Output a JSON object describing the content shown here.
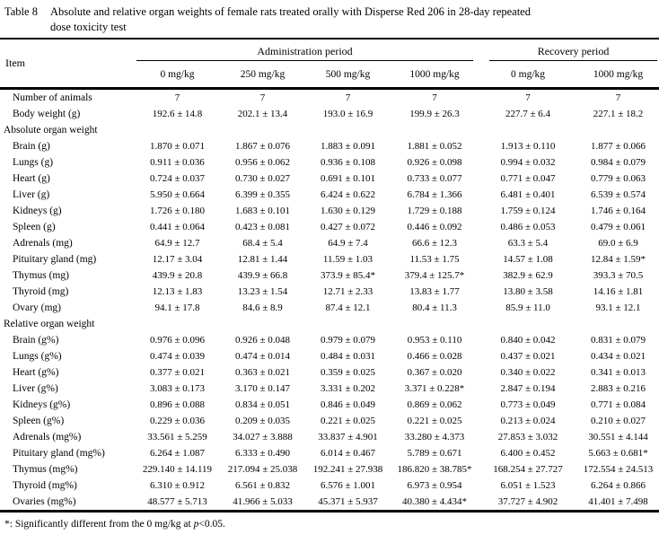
{
  "title": {
    "label": "Table 8",
    "line1": "Absolute and relative organ weights of female rats treated orally with Disperse Red 206 in 28-day repeated",
    "line2": "dose toxicity test"
  },
  "header": {
    "item": "Item",
    "groups": [
      {
        "label": "Administration period",
        "columns": 4
      },
      {
        "label": "Recovery period",
        "columns": 2
      }
    ],
    "doses": [
      "0 mg/kg",
      "250 mg/kg",
      "500 mg/kg",
      "1000 mg/kg",
      "0 mg/kg",
      "1000 mg/kg"
    ]
  },
  "rows": [
    {
      "label": "Number of animals",
      "section": false,
      "values": [
        "7",
        "7",
        "7",
        "7",
        "7",
        "7"
      ]
    },
    {
      "label": "Body weight (g)",
      "section": false,
      "values": [
        "192.6 ± 14.8",
        "202.1 ± 13.4",
        "193.0 ± 16.9",
        "199.9 ± 26.3",
        "227.7 ± 6.4",
        "227.1 ± 18.2"
      ]
    },
    {
      "label": "Absolute organ weight",
      "section": true,
      "values": []
    },
    {
      "label": "Brain (g)",
      "section": false,
      "values": [
        "1.870 ± 0.071",
        "1.867 ± 0.076",
        "1.883 ± 0.091",
        "1.881 ± 0.052",
        "1.913 ± 0.110",
        "1.877 ± 0.066"
      ]
    },
    {
      "label": "Lungs (g)",
      "section": false,
      "values": [
        "0.911 ± 0.036",
        "0.956 ± 0.062",
        "0.936 ± 0.108",
        "0.926 ± 0.098",
        "0.994 ± 0.032",
        "0.984 ± 0.079"
      ]
    },
    {
      "label": "Heart (g)",
      "section": false,
      "values": [
        "0.724 ± 0.037",
        "0.730 ± 0.027",
        "0.691 ± 0.101",
        "0.733 ± 0.077",
        "0.771 ± 0.047",
        "0.779 ± 0.063"
      ]
    },
    {
      "label": "Liver (g)",
      "section": false,
      "values": [
        "5.950 ± 0.664",
        "6.399 ± 0.355",
        "6.424 ± 0.622",
        "6.784 ± 1.366",
        "6.481 ± 0.401",
        "6.539 ± 0.574"
      ]
    },
    {
      "label": "Kidneys (g)",
      "section": false,
      "values": [
        "1.726 ± 0.180",
        "1.683 ± 0.101",
        "1.630 ± 0.129",
        "1.729 ± 0.188",
        "1.759 ± 0.124",
        "1.746 ± 0.164"
      ]
    },
    {
      "label": "Spleen (g)",
      "section": false,
      "values": [
        "0.441 ± 0.064",
        "0.423 ± 0.081",
        "0.427 ± 0.072",
        "0.446 ± 0.092",
        "0.486 ± 0.053",
        "0.479 ± 0.061"
      ]
    },
    {
      "label": "Adrenals (mg)",
      "section": false,
      "values": [
        "64.9 ± 12.7",
        "68.4 ± 5.4",
        "64.9 ± 7.4",
        "66.6 ± 12.3",
        "63.3 ± 5.4",
        "69.0 ± 6.9"
      ]
    },
    {
      "label": "Pituitary gland (mg)",
      "section": false,
      "values": [
        "12.17 ± 3.04",
        "12.81 ± 1.44",
        "11.59 ± 1.03",
        "11.53 ± 1.75",
        "14.57 ± 1.08",
        "12.84 ± 1.59*"
      ]
    },
    {
      "label": "Thymus (mg)",
      "section": false,
      "values": [
        "439.9 ± 20.8",
        "439.9 ± 66.8",
        "373.9 ± 85.4*",
        "379.4 ± 125.7*",
        "382.9 ± 62.9",
        "393.3 ± 70.5"
      ]
    },
    {
      "label": "Thyroid (mg)",
      "section": false,
      "values": [
        "12.13 ± 1.83",
        "13.23 ± 1.54",
        "12.71 ± 2.33",
        "13.83 ± 1.77",
        "13.80 ± 3.58",
        "14.16 ± 1.81"
      ]
    },
    {
      "label": "Ovary (mg)",
      "section": false,
      "values": [
        "94.1 ± 17.8",
        "84.6 ± 8.9",
        "87.4 ± 12.1",
        "80.4 ± 11.3",
        "85.9 ± 11.0",
        "93.1 ± 12.1"
      ]
    },
    {
      "label": "Relative organ weight",
      "section": true,
      "values": []
    },
    {
      "label": "Brain (g%)",
      "section": false,
      "values": [
        "0.976 ± 0.096",
        "0.926 ± 0.048",
        "0.979 ± 0.079",
        "0.953 ± 0.110",
        "0.840 ± 0.042",
        "0.831 ± 0.079"
      ]
    },
    {
      "label": "Lungs (g%)",
      "section": false,
      "values": [
        "0.474 ± 0.039",
        "0.474 ± 0.014",
        "0.484 ± 0.031",
        "0.466 ± 0.028",
        "0.437 ± 0.021",
        "0.434 ± 0.021"
      ]
    },
    {
      "label": "Heart (g%)",
      "section": false,
      "values": [
        "0.377 ± 0.021",
        "0.363 ± 0.021",
        "0.359 ± 0.025",
        "0.367 ± 0.020",
        "0.340 ± 0.022",
        "0.341 ± 0.013"
      ]
    },
    {
      "label": "Liver (g%)",
      "section": false,
      "values": [
        "3.083 ± 0.173",
        "3.170 ± 0.147",
        "3.331 ± 0.202",
        "3.371 ± 0.228*",
        "2.847 ± 0.194",
        "2.883 ± 0.216"
      ]
    },
    {
      "label": "Kidneys (g%)",
      "section": false,
      "values": [
        "0.896 ± 0.088",
        "0.834 ± 0.051",
        "0.846 ± 0.049",
        "0.869 ± 0.062",
        "0.773 ± 0.049",
        "0.771 ± 0.084"
      ]
    },
    {
      "label": "Spleen (g%)",
      "section": false,
      "values": [
        "0.229 ± 0.036",
        "0.209 ± 0.035",
        "0.221 ± 0.025",
        "0.221 ± 0.025",
        "0.213 ± 0.024",
        "0.210 ± 0.027"
      ]
    },
    {
      "label": "Adrenals (mg%)",
      "section": false,
      "values": [
        "33.561 ± 5.259",
        "34.027 ± 3.888",
        "33.837 ± 4.901",
        "33.280 ± 4.373",
        "27.853 ± 3.032",
        "30.551 ± 4.144"
      ]
    },
    {
      "label": "Pituitary gland (mg%)",
      "section": false,
      "values": [
        "6.264 ± 1.087",
        "6.333 ± 0.490",
        "6.014 ± 0.467",
        "5.789 ± 0.671",
        "6.400 ± 0.452",
        "5.663 ± 0.681*"
      ]
    },
    {
      "label": "Thymus (mg%)",
      "section": false,
      "values": [
        "229.140 ± 14.119",
        "217.094 ± 25.038",
        "192.241 ± 27.938",
        "186.820 ± 38.785*",
        "168.254 ± 27.727",
        "172.554 ± 24.513"
      ]
    },
    {
      "label": "Thyroid (mg%)",
      "section": false,
      "values": [
        "6.310 ± 0.912",
        "6.561 ± 0.832",
        "6.576 ± 1.001",
        "6.973 ± 0.954",
        "6.051 ± 1.523",
        "6.264 ± 0.866"
      ]
    },
    {
      "label": "Ovaries (mg%)",
      "section": false,
      "values": [
        "48.577 ± 5.713",
        "41.966 ± 5.033",
        "45.371 ± 5.937",
        "40.380 ± 4.434*",
        "37.727 ± 4.902",
        "41.401 ± 7.498"
      ]
    }
  ],
  "footnote": {
    "prefix": "*: Significantly different from the 0 mg/kg at ",
    "pvar": "p",
    "suffix": "<0.05."
  },
  "colors": {
    "text": "#000000",
    "background": "#ffffff",
    "rule": "#000000"
  }
}
